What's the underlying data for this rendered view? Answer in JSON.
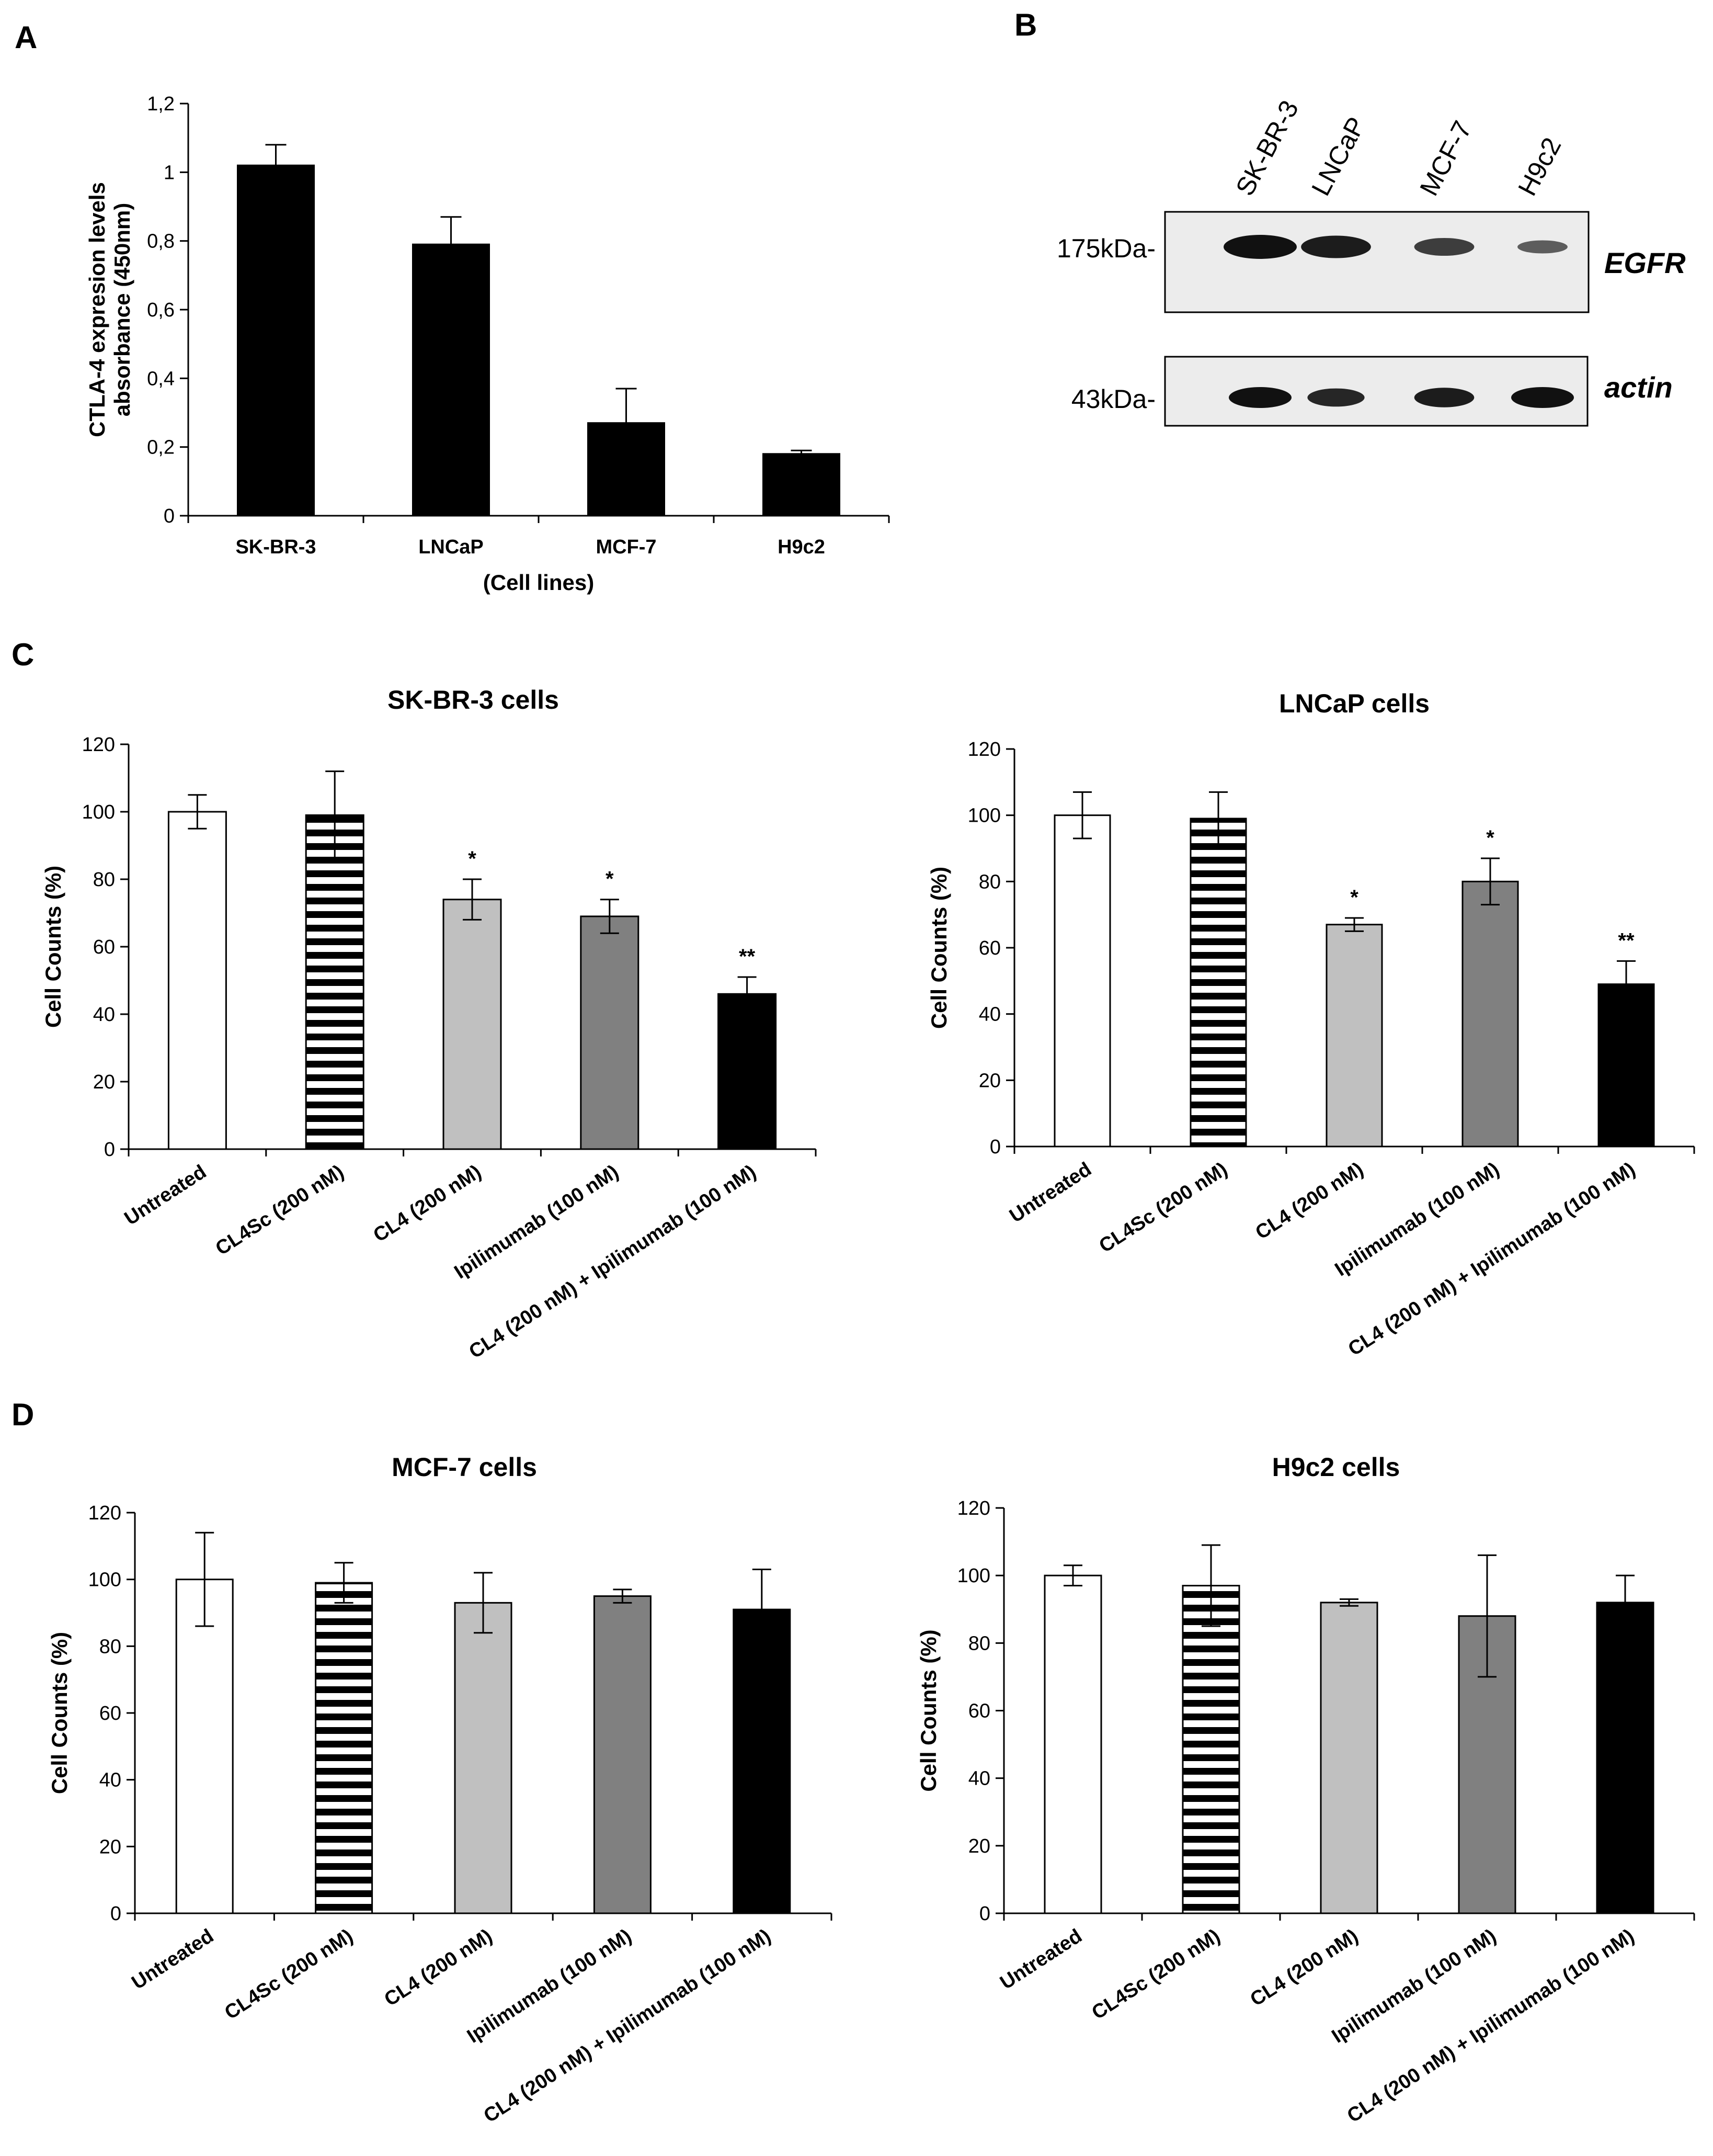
{
  "panels": {
    "A": "A",
    "B": "B",
    "C": "C",
    "D": "D"
  },
  "colors": {
    "black": "#000000",
    "white": "#ffffff",
    "light_gray": "#c0c0c0",
    "dark_gray": "#808080",
    "blot_bg": "#ececec",
    "band": "#111111"
  },
  "chart_data": [
    {
      "id": "A",
      "type": "bar",
      "title": "",
      "categories": [
        "SK-BR-3",
        "LNCaP",
        "MCF-7",
        "H9c2"
      ],
      "values": [
        1.02,
        0.79,
        0.27,
        0.18
      ],
      "errors": [
        0.06,
        0.08,
        0.1,
        0.01
      ],
      "xlabel": "(Cell lines)",
      "ylabel_line1": "CTLA-4 expresion levels",
      "ylabel_line2": "absorbance (450nm)",
      "ylim": [
        0,
        1.2
      ],
      "yticks": [
        "0",
        "0,2",
        "0,4",
        "0,6",
        "0,8",
        "1",
        "1,2"
      ],
      "grid": false
    },
    {
      "id": "C1",
      "type": "bar",
      "title": "SK-BR-3 cells",
      "categories": [
        "Untreated",
        "CL4Sc (200 nM)",
        "CL4 (200 nM)",
        "Ipilimumab (100 nM)",
        "CL4 (200 nM) + Ipilimumab (100 nM)"
      ],
      "values": [
        100,
        99,
        74,
        69,
        46
      ],
      "errors": [
        5,
        13,
        6,
        5,
        5
      ],
      "significance": [
        "",
        "",
        "*",
        "*",
        "**"
      ],
      "fills": [
        "white",
        "stripes",
        "light_gray",
        "dark_gray",
        "black"
      ],
      "ylabel": "Cell Counts (%)",
      "ylim": [
        0,
        120
      ],
      "yticks": [
        "0",
        "20",
        "40",
        "60",
        "80",
        "100",
        "120"
      ]
    },
    {
      "id": "C2",
      "type": "bar",
      "title": "LNCaP cells",
      "categories": [
        "Untreated",
        "CL4Sc (200 nM)",
        "CL4 (200 nM)",
        "Ipilimumab (100 nM)",
        "CL4 (200 nM) + Ipilimumab (100 nM)"
      ],
      "values": [
        100,
        99,
        67,
        80,
        49
      ],
      "errors": [
        7,
        8,
        2,
        7,
        7
      ],
      "significance": [
        "",
        "",
        "*",
        "*",
        "**"
      ],
      "fills": [
        "white",
        "stripes",
        "light_gray",
        "dark_gray",
        "black"
      ],
      "ylabel": "Cell Counts (%)",
      "ylim": [
        0,
        120
      ],
      "yticks": [
        "0",
        "20",
        "40",
        "60",
        "80",
        "100",
        "120"
      ]
    },
    {
      "id": "D1",
      "type": "bar",
      "title": "MCF-7 cells",
      "categories": [
        "Untreated",
        "CL4Sc (200 nM)",
        "CL4 (200 nM)",
        "Ipilimumab (100 nM)",
        "CL4 (200 nM) + Ipilimumab (100 nM)"
      ],
      "values": [
        100,
        99,
        93,
        95,
        91
      ],
      "errors": [
        14,
        6,
        9,
        2,
        12
      ],
      "significance": [
        "",
        "",
        "",
        "",
        ""
      ],
      "fills": [
        "white",
        "stripes",
        "light_gray",
        "dark_gray",
        "black"
      ],
      "ylabel": "Cell Counts (%)",
      "ylim": [
        0,
        120
      ],
      "yticks": [
        "0",
        "20",
        "40",
        "60",
        "80",
        "100",
        "120"
      ]
    },
    {
      "id": "D2",
      "type": "bar",
      "title": "H9c2 cells",
      "categories": [
        "Untreated",
        "CL4Sc (200 nM)",
        "CL4 (200 nM)",
        "Ipilimumab (100 nM)",
        "CL4 (200 nM) + Ipilimumab (100 nM)"
      ],
      "values": [
        100,
        97,
        92,
        88,
        92
      ],
      "errors": [
        3,
        12,
        1,
        18,
        8
      ],
      "significance": [
        "",
        "",
        "",
        "",
        ""
      ],
      "fills": [
        "white",
        "stripes",
        "light_gray",
        "dark_gray",
        "black"
      ],
      "ylabel": "Cell Counts (%)",
      "ylim": [
        0,
        120
      ],
      "yticks": [
        "0",
        "20",
        "40",
        "60",
        "80",
        "100",
        "120"
      ]
    }
  ],
  "blot": {
    "lanes": [
      "SK-BR-3",
      "LNCaP",
      "MCF-7",
      "H9c2"
    ],
    "rows": [
      {
        "marker": "175kDa-",
        "protein": "EGFR",
        "intensities": [
          1.0,
          0.9,
          0.6,
          0.3
        ]
      },
      {
        "marker": "43kDa-",
        "protein": "actin",
        "intensities": [
          1.0,
          0.8,
          0.9,
          1.0
        ]
      }
    ]
  }
}
